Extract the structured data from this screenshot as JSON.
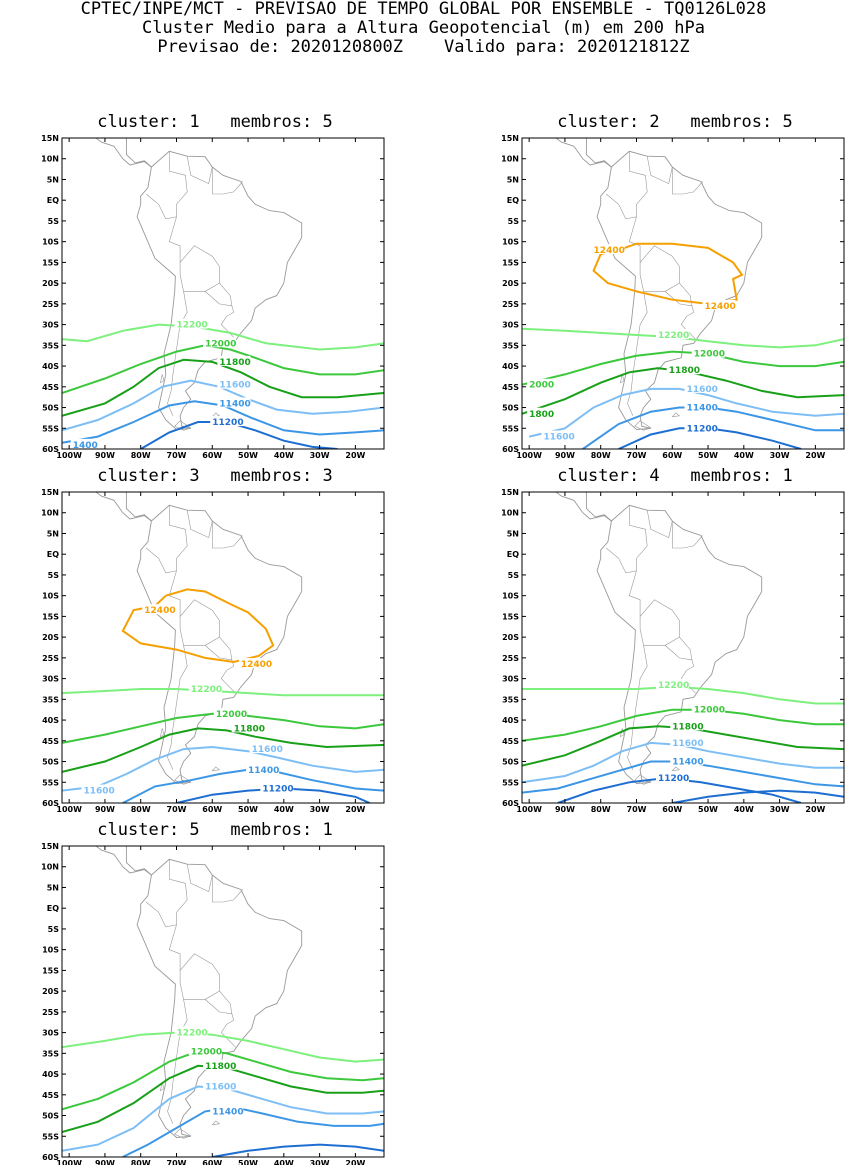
{
  "header": {
    "line1": "CPTEC/INPE/MCT - PREVISAO DE TEMPO GLOBAL POR ENSEMBLE - TQ0126L028",
    "line2": "Cluster Medio para a Altura Geopotencial (m) em 200 hPa",
    "line3": "Previsao de: 2020120800Z    Valido para: 2020121812Z"
  },
  "lat_labels": [
    "15N",
    "10N",
    "5N",
    "EQ",
    "5S",
    "10S",
    "15S",
    "20S",
    "25S",
    "30S",
    "35S",
    "40S",
    "45S",
    "50S",
    "55S",
    "60S"
  ],
  "lon_labels": [
    "100W",
    "90W",
    "80W",
    "70W",
    "60W",
    "50W",
    "40W",
    "30W",
    "20W"
  ],
  "colors": {
    "c12400": "#f5a000",
    "c12200": "#7df07d",
    "c12000": "#3cc83c",
    "c11800": "#19a019",
    "c11600": "#7dbef5",
    "c11400": "#3c96e6",
    "c11200": "#1e6ed2",
    "coast": "#999999"
  },
  "panels": [
    {
      "title": "cluster: 1   membros: 5",
      "contours": [
        {
          "level": 12200,
          "label": "12200",
          "color": "#7df07d"
        },
        {
          "level": 12000,
          "label": "12000",
          "color": "#3cc83c"
        },
        {
          "level": 11800,
          "label": "11800",
          "color": "#19a019"
        },
        {
          "level": 11600,
          "label": "11600",
          "color": "#7dbef5"
        },
        {
          "level": 11400,
          "label": "11400",
          "color": "#3c96e6"
        },
        {
          "level": 11200,
          "label": "11200",
          "color": "#1e6ed2"
        },
        {
          "level": 11400,
          "label": "1400",
          "color": "#3c96e6"
        }
      ]
    },
    {
      "title": "cluster: 2   membros: 5",
      "contours": [
        {
          "level": 12400,
          "label": "12400",
          "color": "#f5a000"
        },
        {
          "level": 12400,
          "label": "12400",
          "color": "#f5a000"
        },
        {
          "level": 12200,
          "label": "12200",
          "color": "#7df07d"
        },
        {
          "level": 12000,
          "label": "12000",
          "color": "#3cc83c"
        },
        {
          "level": 12000,
          "label": "2000",
          "color": "#3cc83c"
        },
        {
          "level": 11800,
          "label": "11800",
          "color": "#19a019"
        },
        {
          "level": 11800,
          "label": "1800",
          "color": "#19a019"
        },
        {
          "level": 11600,
          "label": "11600",
          "color": "#7dbef5"
        },
        {
          "level": 11600,
          "label": "11600",
          "color": "#7dbef5"
        },
        {
          "level": 11400,
          "label": "11400",
          "color": "#3c96e6"
        },
        {
          "level": 11200,
          "label": "11200",
          "color": "#1e6ed2"
        }
      ]
    },
    {
      "title": "cluster: 3   membros: 3",
      "contours": [
        {
          "level": 12400,
          "label": "12400",
          "color": "#f5a000"
        },
        {
          "level": 12400,
          "label": "12400",
          "color": "#f5a000"
        },
        {
          "level": 12200,
          "label": "12200",
          "color": "#7df07d"
        },
        {
          "level": 12000,
          "label": "12000",
          "color": "#3cc83c"
        },
        {
          "level": 11800,
          "label": "11800",
          "color": "#19a019"
        },
        {
          "level": 11600,
          "label": "11600",
          "color": "#7dbef5"
        },
        {
          "level": 11600,
          "label": "11600",
          "color": "#7dbef5"
        },
        {
          "level": 11400,
          "label": "11400",
          "color": "#3c96e6"
        },
        {
          "level": 11200,
          "label": "11200",
          "color": "#1e6ed2"
        }
      ]
    },
    {
      "title": "cluster: 4   membros: 1",
      "contours": [
        {
          "level": 12200,
          "label": "12200",
          "color": "#7df07d"
        },
        {
          "level": 12000,
          "label": "12000",
          "color": "#3cc83c"
        },
        {
          "level": 11800,
          "label": "11800",
          "color": "#19a019"
        },
        {
          "level": 11600,
          "label": "11600",
          "color": "#7dbef5"
        },
        {
          "level": 11400,
          "label": "11400",
          "color": "#3c96e6"
        },
        {
          "level": 11200,
          "label": "11200",
          "color": "#1e6ed2"
        }
      ]
    },
    {
      "title": "cluster: 5   membros: 1",
      "contours": [
        {
          "level": 12200,
          "label": "12200",
          "color": "#7df07d"
        },
        {
          "level": 12000,
          "label": "12000",
          "color": "#3cc83c"
        },
        {
          "level": 11800,
          "label": "11800",
          "color": "#19a019"
        },
        {
          "level": 11600,
          "label": "11600",
          "color": "#7dbef5"
        },
        {
          "level": 11400,
          "label": "11400",
          "color": "#3c96e6"
        }
      ]
    }
  ]
}
